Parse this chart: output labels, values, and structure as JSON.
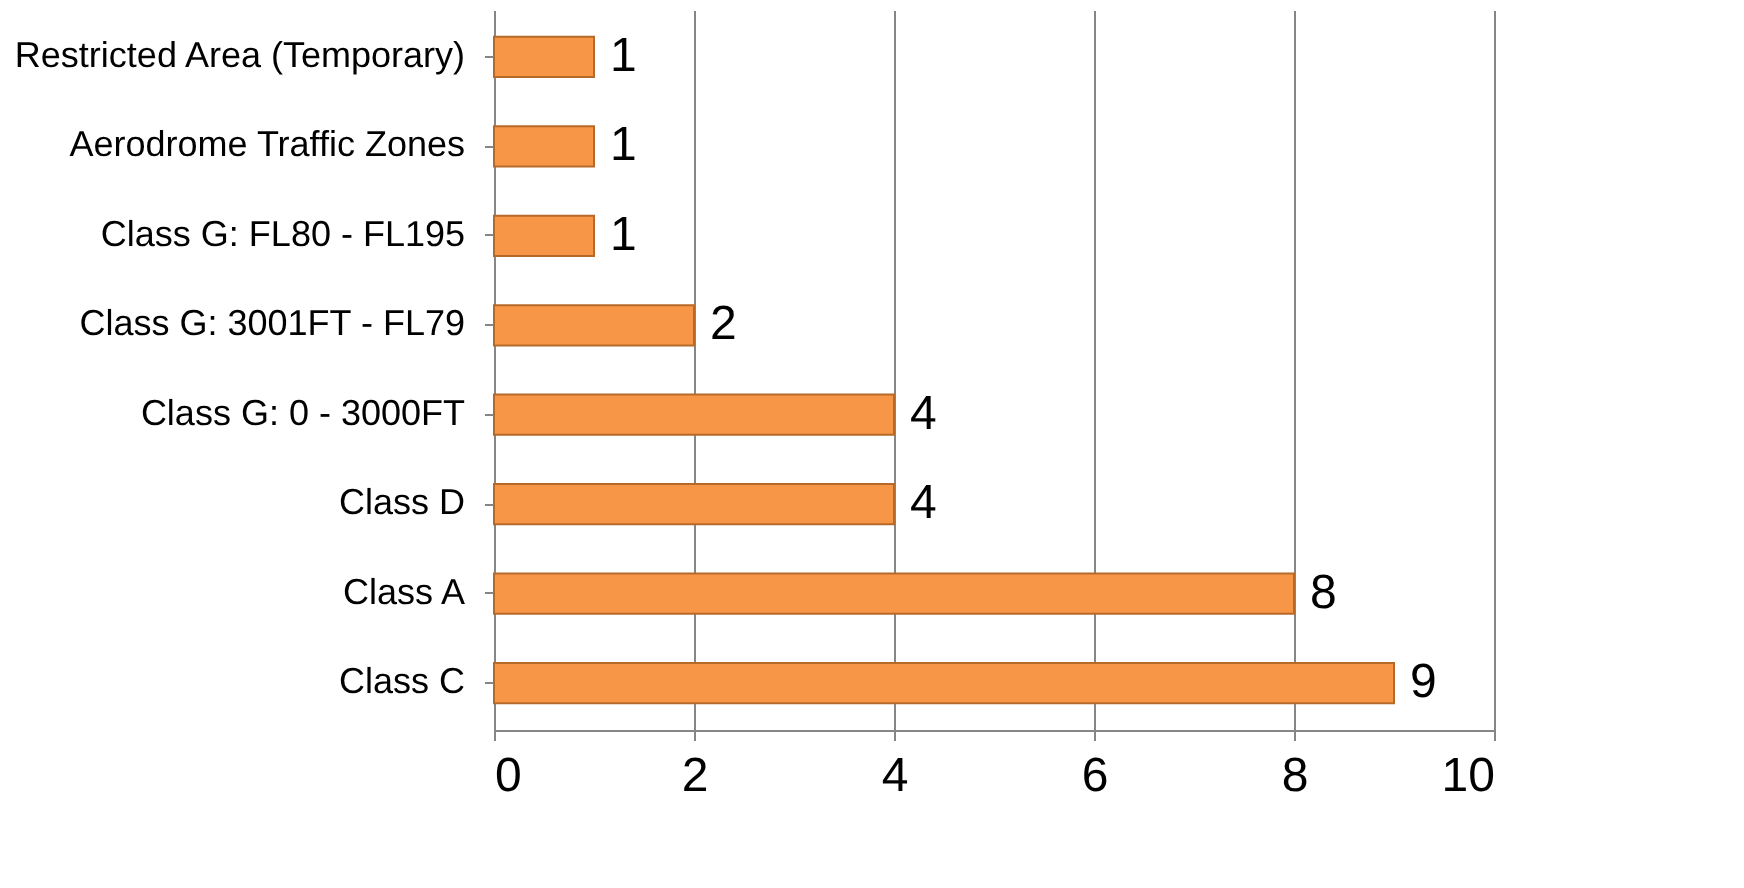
{
  "chart_data": {
    "type": "bar",
    "orientation": "horizontal",
    "categories": [
      "Restricted Area (Temporary)",
      "Aerodrome Traffic Zones",
      "Class G: FL80 - FL195",
      "Class G: 3001FT - FL79",
      "Class G: 0 - 3000FT",
      "Class D",
      "Class A",
      "Class C"
    ],
    "values": [
      1,
      1,
      1,
      2,
      4,
      4,
      8,
      9
    ],
    "color": "#f79646",
    "xlim": [
      0,
      10
    ],
    "xticks": [
      0,
      2,
      4,
      6,
      8,
      10
    ],
    "grid": "x",
    "data_labels": true
  }
}
